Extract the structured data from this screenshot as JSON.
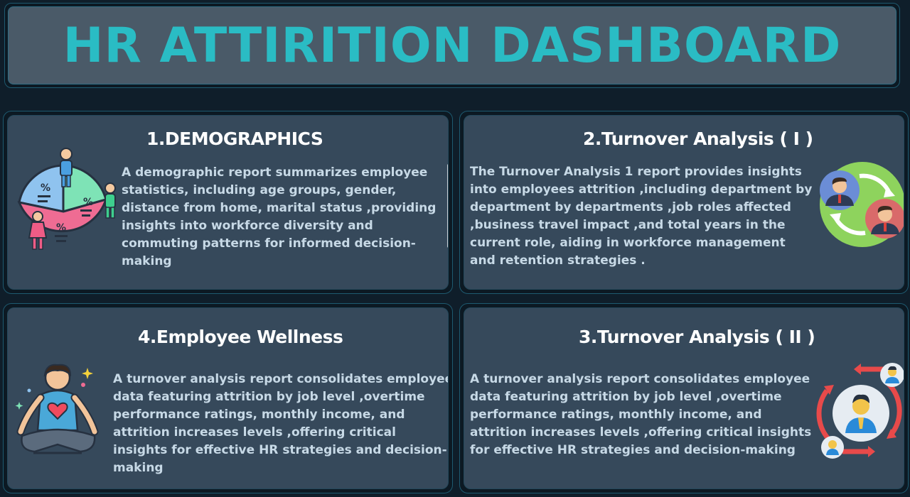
{
  "header": {
    "title": "HR ATTIRITION DASHBOARD"
  },
  "cards": [
    {
      "title": "1.DEMOGRAPHICS",
      "text": "A demographic report summarizes employee statistics, including age groups, gender, distance from home, marital status ,providing insights into workforce diversity and commuting patterns for informed decision-making",
      "icon": "demographics-pie-people-icon"
    },
    {
      "title": "2.Turnover Analysis ( I )",
      "text": "The Turnover Analysis 1 report provides insights into employees attrition ,including     department by department by departments ,job roles affected ,business travel impact ,and total years in the current role, aiding in workforce management and retention strategies .",
      "icon": "employee-turnover-icon"
    },
    {
      "title": "4.Employee Wellness",
      "text": "A turnover analysis report consolidates employee data featuring attrition by job level ,overtime performance ratings, monthly income, and attrition increases levels  ,offering critical insights for effective HR strategies and decision-making",
      "icon": "meditation-wellness-icon"
    },
    {
      "title": "3.Turnover Analysis ( II )",
      "text": "A turnover analysis report consolidates employee data featuring attrition by job level ,overtime performance ratings, monthly income, and attrition increases levels  ,offering critical insights for effective HR strategies and decision-making",
      "icon": "employee-replacement-icon"
    }
  ],
  "colors": {
    "accent": "#2abcc4",
    "card_bg": "#36495b",
    "header_bg": "#4a5a68",
    "page_bg": "#0f1e2a"
  }
}
